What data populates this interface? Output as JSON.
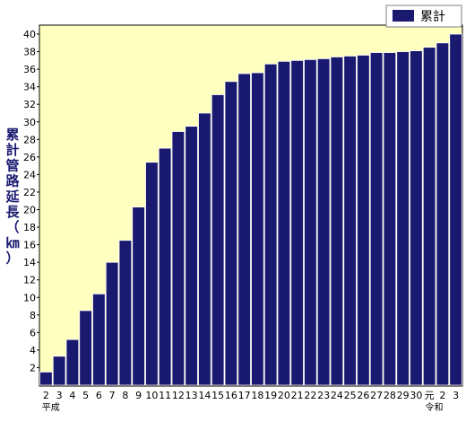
{
  "chart_data": {
    "type": "bar",
    "categories": [
      "2",
      "3",
      "4",
      "5",
      "6",
      "7",
      "8",
      "9",
      "10",
      "11",
      "12",
      "13",
      "14",
      "15",
      "16",
      "17",
      "18",
      "19",
      "20",
      "21",
      "22",
      "23",
      "24",
      "25",
      "26",
      "27",
      "28",
      "29",
      "30",
      "元",
      "2",
      "3"
    ],
    "era_labels": [
      {
        "label": "平成",
        "category_index": 0
      },
      {
        "label": "令和",
        "category_index": 29
      }
    ],
    "series": [
      {
        "name": "累計",
        "values": [
          1.5,
          3.3,
          5.2,
          8.5,
          10.4,
          14.0,
          16.5,
          20.3,
          25.4,
          27.0,
          28.9,
          29.5,
          31.0,
          33.1,
          34.6,
          35.5,
          35.6,
          36.6,
          36.9,
          37.0,
          37.1,
          37.2,
          37.4,
          37.5,
          37.6,
          37.9,
          37.9,
          38.0,
          38.1,
          38.5,
          39.0,
          40.0
        ]
      }
    ],
    "ylabel": "累計管路延長（㎞）",
    "xlabel": "",
    "ylim": [
      0,
      40
    ],
    "yticks": [
      2,
      4,
      6,
      8,
      10,
      12,
      14,
      16,
      18,
      20,
      22,
      24,
      26,
      28,
      30,
      32,
      34,
      36,
      38,
      40
    ],
    "grid": false,
    "legend": "top-right",
    "colors": {
      "bar": "#191970",
      "plot_background": "#FFFFC0",
      "bar_edge": "#FFFFFF"
    }
  }
}
